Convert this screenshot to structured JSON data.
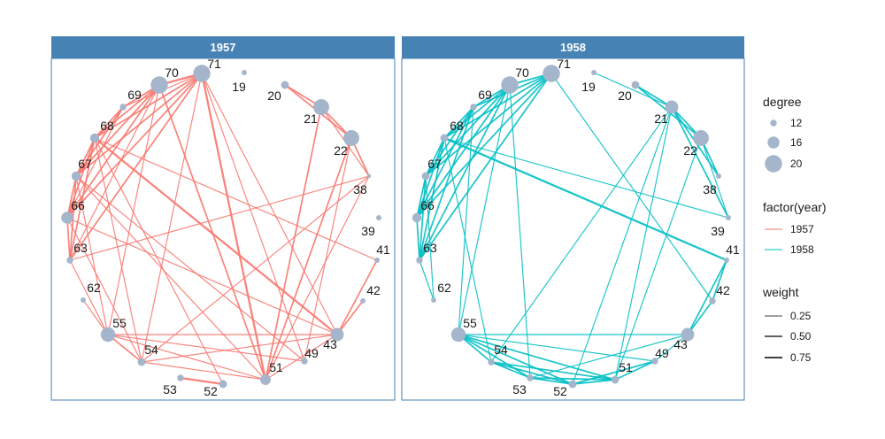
{
  "chart_data": {
    "type": "network",
    "facet_variable": "year",
    "panels": [
      {
        "title": "1957",
        "edge_color": "#F8766D",
        "nodes": [
          {
            "id": "71",
            "degree": 20
          },
          {
            "id": "19",
            "degree": 11
          },
          {
            "id": "20",
            "degree": 13
          },
          {
            "id": "21",
            "degree": 19
          },
          {
            "id": "22",
            "degree": 19
          },
          {
            "id": "38",
            "degree": 10
          },
          {
            "id": "39",
            "degree": 11
          },
          {
            "id": "41",
            "degree": 11
          },
          {
            "id": "42",
            "degree": 11
          },
          {
            "id": "43",
            "degree": 17
          },
          {
            "id": "49",
            "degree": 12
          },
          {
            "id": "51",
            "degree": 15
          },
          {
            "id": "52",
            "degree": 13
          },
          {
            "id": "53",
            "degree": 12
          },
          {
            "id": "54",
            "degree": 13
          },
          {
            "id": "55",
            "degree": 18
          },
          {
            "id": "62",
            "degree": 11
          },
          {
            "id": "63",
            "degree": 12
          },
          {
            "id": "66",
            "degree": 16
          },
          {
            "id": "67",
            "degree": 14
          },
          {
            "id": "68",
            "degree": 14
          },
          {
            "id": "69",
            "degree": 12
          },
          {
            "id": "70",
            "degree": 20
          }
        ],
        "edges": [
          [
            "71",
            "70",
            0.75
          ],
          [
            "71",
            "69",
            0.25
          ],
          [
            "71",
            "68",
            0.5
          ],
          [
            "71",
            "67",
            0.5
          ],
          [
            "71",
            "66",
            0.5
          ],
          [
            "71",
            "63",
            0.5
          ],
          [
            "71",
            "43",
            0.25
          ],
          [
            "71",
            "51",
            0.75
          ],
          [
            "71",
            "49",
            0.25
          ],
          [
            "71",
            "54",
            0.25
          ],
          [
            "70",
            "69",
            0.5
          ],
          [
            "70",
            "68",
            0.5
          ],
          [
            "70",
            "67",
            0.5
          ],
          [
            "70",
            "66",
            0.5
          ],
          [
            "70",
            "63",
            0.25
          ],
          [
            "70",
            "55",
            0.25
          ],
          [
            "70",
            "51",
            0.5
          ],
          [
            "69",
            "68",
            0.5
          ],
          [
            "69",
            "67",
            0.5
          ],
          [
            "69",
            "66",
            0.25
          ],
          [
            "68",
            "67",
            0.5
          ],
          [
            "68",
            "66",
            0.5
          ],
          [
            "68",
            "63",
            0.5
          ],
          [
            "68",
            "43",
            0.75
          ],
          [
            "68",
            "41",
            0.25
          ],
          [
            "68",
            "54",
            0.25
          ],
          [
            "68",
            "52",
            0.25
          ],
          [
            "67",
            "66",
            0.5
          ],
          [
            "67",
            "63",
            0.5
          ],
          [
            "67",
            "55",
            0.25
          ],
          [
            "67",
            "51",
            0.25
          ],
          [
            "67",
            "49",
            0.25
          ],
          [
            "66",
            "63",
            0.5
          ],
          [
            "66",
            "54",
            0.25
          ],
          [
            "66",
            "43",
            0.25
          ],
          [
            "63",
            "55",
            0.25
          ],
          [
            "62",
            "55",
            0.25
          ],
          [
            "55",
            "54",
            0.5
          ],
          [
            "55",
            "43",
            0.25
          ],
          [
            "55",
            "49",
            0.25
          ],
          [
            "55",
            "51",
            0.25
          ],
          [
            "54",
            "38",
            0.25
          ],
          [
            "54",
            "51",
            0.25
          ],
          [
            "54",
            "43",
            0.25
          ],
          [
            "53",
            "52",
            0.75
          ],
          [
            "51",
            "21",
            0.5
          ],
          [
            "51",
            "22",
            0.5
          ],
          [
            "51",
            "38",
            0.25
          ],
          [
            "51",
            "43",
            0.25
          ],
          [
            "49",
            "22",
            0.25
          ],
          [
            "43",
            "41",
            0.5
          ],
          [
            "43",
            "42",
            0.5
          ],
          [
            "20",
            "21",
            0.5
          ],
          [
            "20",
            "22",
            0.5
          ],
          [
            "21",
            "22",
            0.5
          ],
          [
            "21",
            "38",
            0.25
          ],
          [
            "22",
            "38",
            0.5
          ],
          [
            "63",
            "38",
            0.25
          ]
        ]
      },
      {
        "title": "1958",
        "edge_color": "#00BFC4",
        "nodes": [
          {
            "id": "71",
            "degree": 20
          },
          {
            "id": "19",
            "degree": 11
          },
          {
            "id": "20",
            "degree": 13
          },
          {
            "id": "21",
            "degree": 17
          },
          {
            "id": "22",
            "degree": 19
          },
          {
            "id": "38",
            "degree": 11
          },
          {
            "id": "39",
            "degree": 11
          },
          {
            "id": "41",
            "degree": 11
          },
          {
            "id": "42",
            "degree": 12
          },
          {
            "id": "43",
            "degree": 17
          },
          {
            "id": "49",
            "degree": 12
          },
          {
            "id": "51",
            "degree": 13
          },
          {
            "id": "52",
            "degree": 13
          },
          {
            "id": "53",
            "degree": 12
          },
          {
            "id": "54",
            "degree": 12
          },
          {
            "id": "55",
            "degree": 18
          },
          {
            "id": "62",
            "degree": 11
          },
          {
            "id": "63",
            "degree": 12
          },
          {
            "id": "66",
            "degree": 14
          },
          {
            "id": "67",
            "degree": 13
          },
          {
            "id": "68",
            "degree": 13
          },
          {
            "id": "69",
            "degree": 12
          },
          {
            "id": "70",
            "degree": 20
          }
        ],
        "edges": [
          [
            "71",
            "70",
            0.5
          ],
          [
            "71",
            "69",
            0.5
          ],
          [
            "71",
            "68",
            0.5
          ],
          [
            "71",
            "67",
            0.5
          ],
          [
            "71",
            "66",
            0.5
          ],
          [
            "71",
            "63",
            0.5
          ],
          [
            "71",
            "42",
            0.25
          ],
          [
            "70",
            "69",
            0.5
          ],
          [
            "70",
            "68",
            0.5
          ],
          [
            "70",
            "67",
            0.5
          ],
          [
            "70",
            "66",
            0.5
          ],
          [
            "70",
            "63",
            0.5
          ],
          [
            "70",
            "55",
            0.25
          ],
          [
            "70",
            "53",
            0.25
          ],
          [
            "69",
            "68",
            0.5
          ],
          [
            "69",
            "67",
            0.5
          ],
          [
            "69",
            "66",
            0.5
          ],
          [
            "69",
            "63",
            0.5
          ],
          [
            "69",
            "55",
            0.25
          ],
          [
            "68",
            "67",
            0.5
          ],
          [
            "68",
            "66",
            0.5
          ],
          [
            "68",
            "63",
            0.5
          ],
          [
            "68",
            "41",
            0.75
          ],
          [
            "68",
            "54",
            0.25
          ],
          [
            "68",
            "39",
            0.25
          ],
          [
            "67",
            "66",
            0.5
          ],
          [
            "67",
            "63",
            0.5
          ],
          [
            "67",
            "62",
            0.25
          ],
          [
            "66",
            "63",
            0.5
          ],
          [
            "63",
            "62",
            0.25
          ],
          [
            "55",
            "54",
            0.5
          ],
          [
            "55",
            "53",
            0.5
          ],
          [
            "55",
            "52",
            0.5
          ],
          [
            "55",
            "51",
            0.5
          ],
          [
            "55",
            "49",
            0.25
          ],
          [
            "55",
            "43",
            0.25
          ],
          [
            "54",
            "53",
            0.5
          ],
          [
            "54",
            "52",
            0.5
          ],
          [
            "54",
            "51",
            0.5
          ],
          [
            "54",
            "21",
            0.25
          ],
          [
            "53",
            "52",
            0.5
          ],
          [
            "53",
            "51",
            0.5
          ],
          [
            "53",
            "43",
            0.25
          ],
          [
            "52",
            "51",
            0.5
          ],
          [
            "52",
            "49",
            0.5
          ],
          [
            "52",
            "21",
            0.25
          ],
          [
            "51",
            "49",
            0.5
          ],
          [
            "51",
            "22",
            0.25
          ],
          [
            "51",
            "21",
            0.25
          ],
          [
            "49",
            "43",
            0.25
          ],
          [
            "43",
            "42",
            0.5
          ],
          [
            "43",
            "41",
            0.5
          ],
          [
            "42",
            "41",
            0.5
          ],
          [
            "19",
            "21",
            0.25
          ],
          [
            "20",
            "21",
            0.5
          ],
          [
            "20",
            "22",
            0.5
          ],
          [
            "21",
            "22",
            0.5
          ],
          [
            "21",
            "38",
            0.5
          ],
          [
            "21",
            "39",
            0.5
          ],
          [
            "22",
            "38",
            0.5
          ],
          [
            "22",
            "39",
            0.25
          ]
        ]
      }
    ],
    "legend": {
      "placement": "right",
      "degree": {
        "title": "degree",
        "values": [
          12,
          16,
          20
        ],
        "labels": [
          "12",
          "16",
          "20"
        ]
      },
      "year": {
        "title": "factor(year)",
        "entries": [
          {
            "label": "1957",
            "color": "#F8766D"
          },
          {
            "label": "1958",
            "color": "#00BFC4"
          }
        ]
      },
      "weight": {
        "title": "weight",
        "values": [
          0.25,
          0.5,
          0.75
        ],
        "labels": [
          "0.25",
          "0.50",
          "0.75"
        ]
      }
    },
    "node_color": "#A5B5CB",
    "strip_color": "#4682B4",
    "border_color": "#4682B4"
  }
}
